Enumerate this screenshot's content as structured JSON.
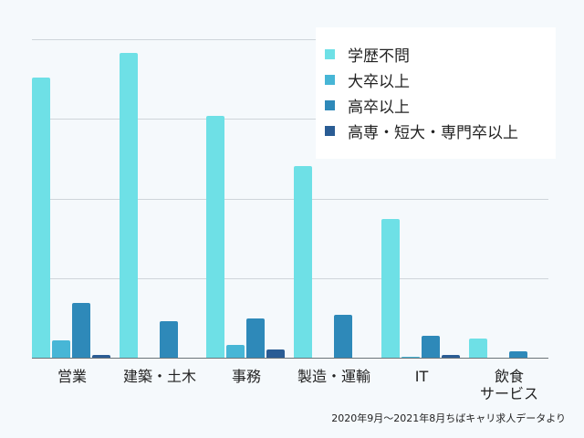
{
  "chart_data": {
    "type": "bar",
    "title": "",
    "xlabel": "",
    "ylabel": "",
    "y_unit_note": "No y-axis tick labels shown; values are relative, in gridline units",
    "ylim": [
      0,
      4
    ],
    "grid": true,
    "legend_position": "top-right",
    "categories": [
      "営業",
      "建築・土木",
      "事務",
      "製造・運輸",
      "IT",
      "飲食\nサービス"
    ],
    "series": [
      {
        "name": "学歴不問",
        "color": "#6ee0e6",
        "values": [
          3.51,
          3.82,
          3.03,
          2.4,
          1.74,
          0.24
        ]
      },
      {
        "name": "大卒以上",
        "color": "#47b6d6",
        "values": [
          0.22,
          0.0,
          0.16,
          0.0,
          0.01,
          0.0
        ]
      },
      {
        "name": "高卒以上",
        "color": "#2e89b9",
        "values": [
          0.69,
          0.46,
          0.49,
          0.54,
          0.27,
          0.08
        ]
      },
      {
        "name": "高専・短大・専門卒以上",
        "color": "#2a5c94",
        "values": [
          0.03,
          0.0,
          0.1,
          0.0,
          0.03,
          0.0
        ]
      }
    ],
    "annotations": [
      "2020年9月〜2021年8月ちばキャリ求人データより"
    ]
  },
  "legend": {
    "items": [
      {
        "label": "学歴不問",
        "color": "#6ee0e6"
      },
      {
        "label": "大卒以上",
        "color": "#47b6d6"
      },
      {
        "label": "高卒以上",
        "color": "#2e89b9"
      },
      {
        "label": "高専・短大・専門卒以上",
        "color": "#2a5c94"
      }
    ]
  },
  "source_note": "2020年9月〜2021年8月ちばキャリ求人データより"
}
